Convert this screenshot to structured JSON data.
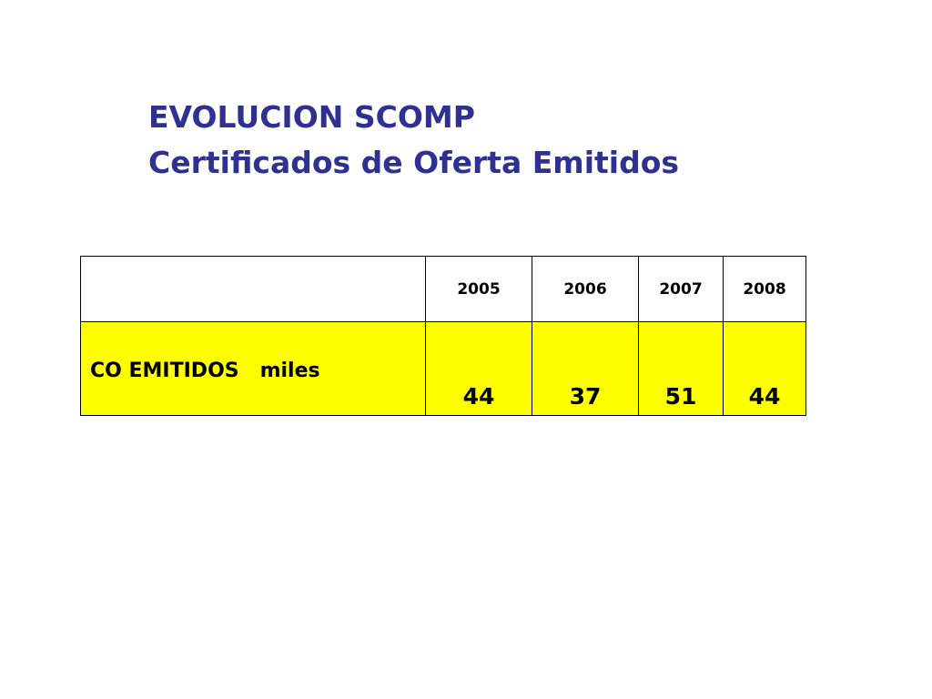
{
  "slide": {
    "title_line1": "EVOLUCION SCOMP",
    "title_line2": "Certificados de Oferta Emitidos"
  },
  "table": {
    "corner_label": "",
    "columns": [
      "2005",
      "2006",
      "2007",
      "2008"
    ],
    "rows": [
      {
        "label": "CO EMITIDOS   miles",
        "values": [
          "44",
          "37",
          "51",
          "44"
        ]
      }
    ]
  },
  "colors": {
    "title": "#2E3192",
    "highlight_row": "#FFFF00",
    "border": "#000000"
  }
}
